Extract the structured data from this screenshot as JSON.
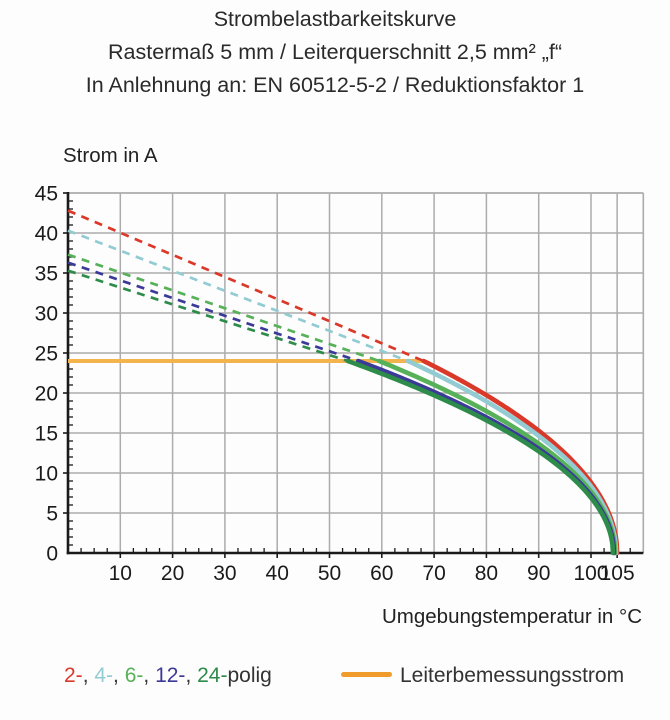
{
  "title": {
    "line1": "Strombelastbarkeitskurve",
    "line2": "Rastermaß 5 mm / Leiterquerschnitt 2,5 mm² „f“",
    "line3": "In Anlehnung an: EN 60512-5-2 / Reduktionsfaktor 1"
  },
  "chart_data": {
    "type": "line",
    "title": "Strombelastbarkeitskurve",
    "subtitle": "Rastermaß 5 mm / Leiterquerschnitt 2,5 mm² „f“",
    "note": "In Anlehnung an: EN 60512-5-2 / Reduktionsfaktor 1",
    "xlabel": "Umgebungstemperatur in °C",
    "ylabel": "Strom in A",
    "xlim": [
      0,
      110
    ],
    "ylim": [
      0,
      45
    ],
    "x_major_ticks": [
      10,
      20,
      30,
      40,
      50,
      60,
      70,
      80,
      90,
      100,
      105
    ],
    "y_major_ticks": [
      0,
      5,
      10,
      15,
      20,
      25,
      30,
      35,
      40,
      45
    ],
    "x_minor_step": 2.5,
    "y_minor_step": 1,
    "grid": true,
    "grid_color": "#ACACAC",
    "axis_color": "#1a1a1a",
    "rated_current_line": {
      "label": "Leiterbemessungsstrom",
      "value_A": 24,
      "from_T": 0,
      "to_T": 68,
      "color": "#F3B44E"
    },
    "series": [
      {
        "name": "2-polig",
        "color": "#DA392A",
        "dashed_segment": {
          "from": [
            0,
            42.8
          ],
          "to": [
            68,
            24
          ]
        },
        "solid_curve": {
          "start_T": 68,
          "end_T": 105,
          "start_A": 24,
          "points": [
            [
              68,
              24
            ],
            [
              70,
              23.3
            ],
            [
              75,
              21.5
            ],
            [
              80,
              19.7
            ],
            [
              85,
              17.6
            ],
            [
              90,
              15.3
            ],
            [
              95,
              12.4
            ],
            [
              100,
              8.8
            ],
            [
              103,
              5.6
            ],
            [
              105,
              0
            ]
          ]
        }
      },
      {
        "name": "4-polig",
        "color": "#93CBD2",
        "dashed_segment": {
          "from": [
            0,
            40.3
          ],
          "to": [
            65,
            24
          ]
        },
        "solid_curve": {
          "start_T": 65,
          "end_T": 104.8,
          "start_A": 24,
          "points": [
            [
              65,
              24
            ],
            [
              70,
              22.4
            ],
            [
              75,
              20.8
            ],
            [
              80,
              18.9
            ],
            [
              85,
              16.9
            ],
            [
              90,
              14.6
            ],
            [
              95,
              11.9
            ],
            [
              100,
              8.3
            ],
            [
              104.8,
              0
            ]
          ]
        }
      },
      {
        "name": "6-polig",
        "color": "#56B158",
        "dashed_segment": {
          "from": [
            0,
            37.3
          ],
          "to": [
            59.5,
            24
          ]
        },
        "solid_curve": {
          "start_T": 59.5,
          "end_T": 104.6,
          "start_A": 24,
          "points": [
            [
              59.5,
              24
            ],
            [
              65,
              22.5
            ],
            [
              70,
              21.0
            ],
            [
              75,
              19.4
            ],
            [
              80,
              17.7
            ],
            [
              85,
              15.8
            ],
            [
              90,
              13.7
            ],
            [
              95,
              11.1
            ],
            [
              100,
              7.7
            ],
            [
              104.6,
              0
            ]
          ]
        }
      },
      {
        "name": "12-polig",
        "color": "#3B3A98",
        "dashed_segment": {
          "from": [
            0,
            36.3
          ],
          "to": [
            55.5,
            24
          ]
        },
        "solid_curve": {
          "start_T": 55.5,
          "end_T": 104.4,
          "start_A": 24,
          "points": [
            [
              55.5,
              24
            ],
            [
              60,
              22.9
            ],
            [
              65,
              21.5
            ],
            [
              70,
              20.1
            ],
            [
              75,
              18.6
            ],
            [
              80,
              16.9
            ],
            [
              85,
              15.1
            ],
            [
              90,
              13.0
            ],
            [
              95,
              10.5
            ],
            [
              100,
              7.2
            ],
            [
              104.4,
              0
            ]
          ]
        }
      },
      {
        "name": "24-polig",
        "color": "#2E8C4B",
        "dashed_segment": {
          "from": [
            0,
            35.3
          ],
          "to": [
            53.5,
            24
          ]
        },
        "solid_curve": {
          "start_T": 53.5,
          "end_T": 104.2,
          "start_A": 24,
          "points": [
            [
              53.5,
              24
            ],
            [
              60,
              22.4
            ],
            [
              65,
              21.1
            ],
            [
              70,
              19.7
            ],
            [
              75,
              18.2
            ],
            [
              80,
              16.6
            ],
            [
              85,
              14.8
            ],
            [
              90,
              12.7
            ],
            [
              95,
              10.2
            ],
            [
              100,
              6.9
            ],
            [
              104.2,
              0
            ]
          ]
        }
      }
    ],
    "legend_position": "bottom"
  },
  "legend": {
    "poles": {
      "segments": [
        {
          "text": "2-",
          "color": "#DA392A"
        },
        {
          "text": ", ",
          "color": "#333333"
        },
        {
          "text": "4-",
          "color": "#93CBD2"
        },
        {
          "text": ", ",
          "color": "#333333"
        },
        {
          "text": "6-",
          "color": "#56B158"
        },
        {
          "text": ", ",
          "color": "#333333"
        },
        {
          "text": "12-",
          "color": "#3B3A98"
        },
        {
          "text": ", ",
          "color": "#333333"
        },
        {
          "text": "24-",
          "color": "#2E8C4B"
        },
        {
          "text": "polig",
          "color": "#333333"
        }
      ]
    },
    "rated": {
      "label": "Leiterbemessungsstrom",
      "swatch_color": "#EF9C2C"
    }
  }
}
